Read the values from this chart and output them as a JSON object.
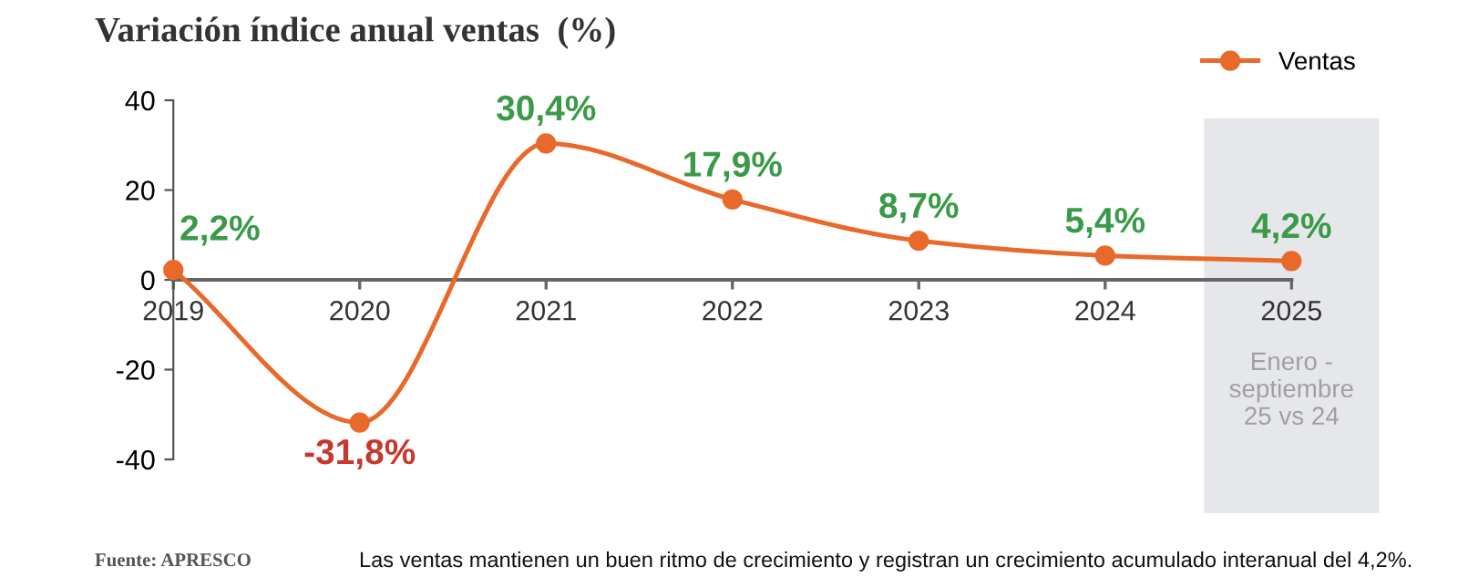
{
  "chart_data": {
    "type": "line",
    "title": "Variación índice anual ventas  (%)",
    "categories": [
      "2019",
      "2020",
      "2021",
      "2022",
      "2023",
      "2024",
      "2025"
    ],
    "series": [
      {
        "name": "Ventas",
        "color": "#e8692a",
        "values": [
          2.2,
          -31.8,
          30.4,
          17.9,
          8.7,
          5.4,
          4.2
        ],
        "value_labels": [
          "2,2%",
          "-31,8%",
          "30,4%",
          "17,9%",
          "8,7%",
          "5,4%",
          "4,2%"
        ]
      }
    ],
    "ylim": [
      -40,
      40
    ],
    "yticks": [
      -40,
      -20,
      0,
      20,
      40
    ],
    "bands": [
      {
        "axis": "x",
        "from": "2025",
        "to": "2025",
        "label": "Enero -\nseptiembre\n25 vs 24",
        "color": "#e6e7ea"
      }
    ],
    "marker": "circle",
    "line_style": "solid",
    "legend": "top right",
    "grid": false,
    "annotations": [
      "Fuente: APRESCO",
      "Las ventas mantienen un buen ritmo de crecimiento y registran un crecimiento acumulado interanual del 4,2%."
    ]
  }
}
